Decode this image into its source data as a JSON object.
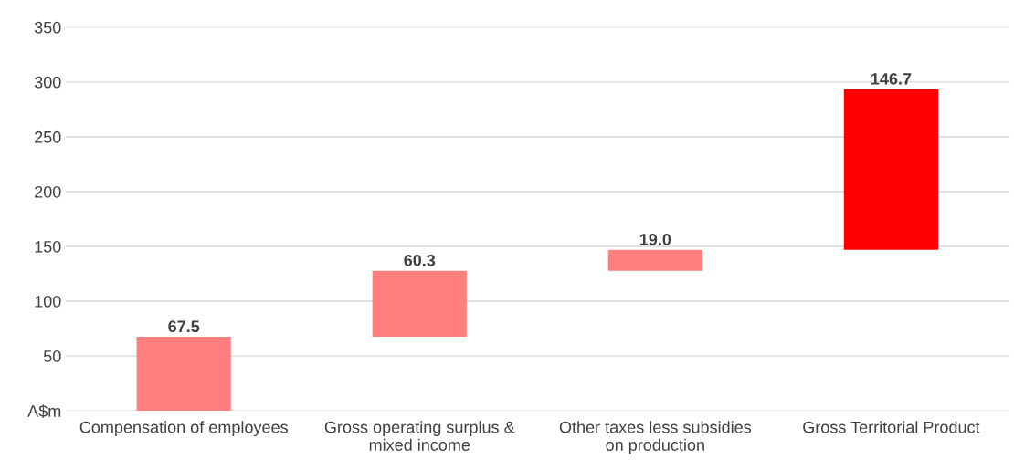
{
  "chart_data": {
    "type": "bar",
    "categories": [
      "Compensation of employees",
      "Gross operating surplus & mixed income",
      "Other taxes less subsidies on production",
      "Gross Territorial Product"
    ],
    "values": [
      67.5,
      60.3,
      19.0,
      146.7
    ],
    "base": [
      0,
      67.5,
      127.8,
      146.8
    ],
    "colors": [
      "#ff7f7f",
      "#ff7f7f",
      "#ff7f7f",
      "#ff0000"
    ],
    "value_labels": [
      "67.5",
      "60.3",
      "19.0",
      "146.7"
    ],
    "ylim": [
      0,
      350
    ],
    "yticks": [
      {
        "value": 0,
        "label": "A$m"
      },
      50,
      100,
      150,
      200,
      250,
      300,
      350
    ],
    "grid": "y",
    "legend": false
  }
}
